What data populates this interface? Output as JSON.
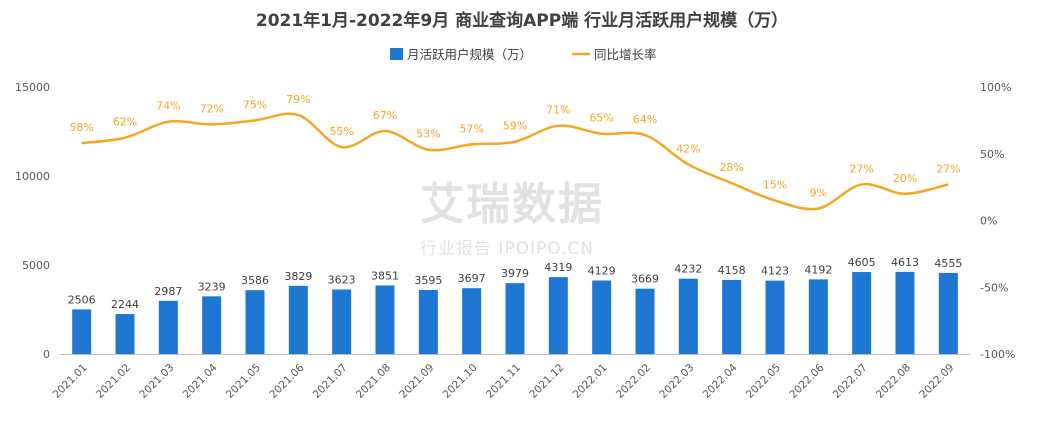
{
  "chart_data": {
    "type": "bar",
    "title": "2021年1月-2022年9月 商业查询APP端 行业月活跃用户规模（万）",
    "categories": [
      "2021.01",
      "2021.02",
      "2021.03",
      "2021.04",
      "2021.05",
      "2021.06",
      "2021.07",
      "2021.08",
      "2021.09",
      "2021.10",
      "2021.11",
      "2021.12",
      "2022.01",
      "2022.02",
      "2022.03",
      "2022.04",
      "2022.05",
      "2022.06",
      "2022.07",
      "2022.08",
      "2022.09"
    ],
    "series": [
      {
        "name": "月活跃用户规模（万）",
        "type": "bar",
        "axis": "left",
        "color": "#1f77d4",
        "values": [
          2506,
          2244,
          2987,
          3239,
          3586,
          3829,
          3623,
          3851,
          3595,
          3697,
          3979,
          4319,
          4129,
          3669,
          4232,
          4158,
          4123,
          4192,
          4605,
          4613,
          4555
        ],
        "labels": [
          "2506",
          "2244",
          "2987",
          "3239",
          "3586",
          "3829",
          "3623",
          "3851",
          "3595",
          "3697",
          "3979",
          "4319",
          "4129",
          "3669",
          "4232",
          "4158",
          "4123",
          "4192",
          "4605",
          "4613",
          "4555"
        ]
      },
      {
        "name": "同比增长率",
        "type": "line",
        "axis": "right",
        "color": "#f5a623",
        "values": [
          58,
          62,
          74,
          72,
          75,
          79,
          55,
          67,
          53,
          57,
          59,
          71,
          65,
          64,
          42,
          28,
          15,
          9,
          27,
          20,
          27
        ],
        "labels": [
          "58%",
          "62%",
          "74%",
          "72%",
          "75%",
          "79%",
          "55%",
          "67%",
          "53%",
          "57%",
          "59%",
          "71%",
          "65%",
          "64%",
          "42%",
          "28%",
          "15%",
          "9%",
          "27%",
          "20%",
          "27%"
        ]
      }
    ],
    "y_left": {
      "ylim": [
        0,
        15000
      ],
      "ticks": [
        "0",
        "5000",
        "10000",
        "15000"
      ]
    },
    "y_right": {
      "ylim": [
        -100,
        100
      ],
      "ticks": [
        "-100%",
        "-50%",
        "0%",
        "50%",
        "100%"
      ]
    },
    "legend": {
      "position": "top-center"
    },
    "grid": false
  },
  "watermark": {
    "main": "艾瑞数据",
    "sub": "行业报告 IPOIPO.CN"
  }
}
